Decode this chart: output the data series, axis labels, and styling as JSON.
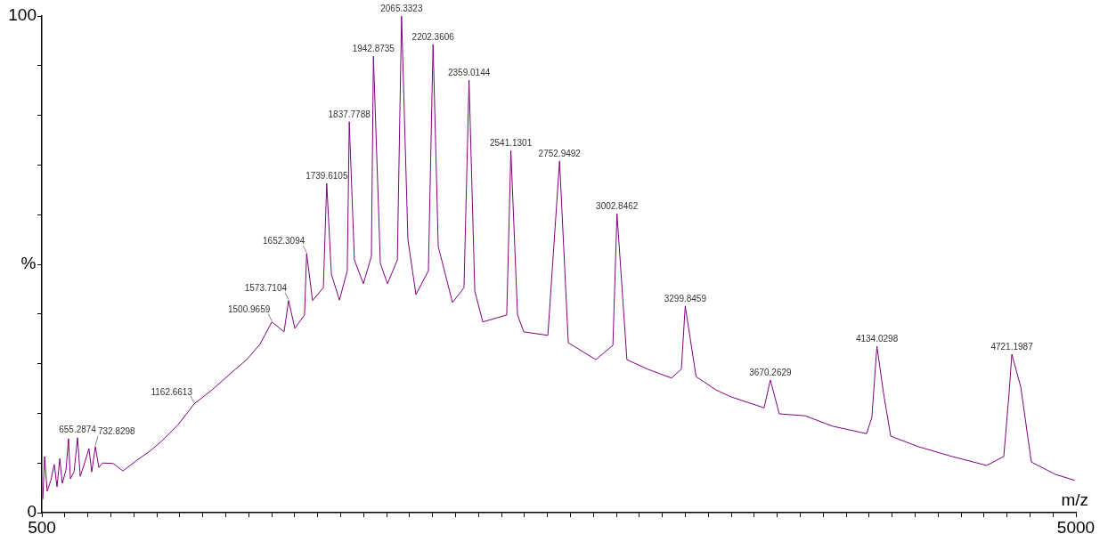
{
  "chart_data": {
    "type": "line",
    "xlabel": "m/z",
    "ylabel": "%",
    "color": "#800080",
    "marker": "none",
    "x": [
      504,
      512,
      523,
      539,
      554,
      566,
      578,
      589,
      605,
      616,
      624,
      640,
      655.3,
      667,
      686,
      705,
      717,
      732.8,
      748,
      764,
      810,
      853,
      915,
      973,
      1019,
      1093,
      1162.7,
      1240,
      1333,
      1391,
      1449,
      1501,
      1554,
      1573.7,
      1601,
      1643,
      1652.3,
      1678,
      1725,
      1739.6,
      1760,
      1795,
      1829,
      1837.8,
      1860,
      1899,
      1934,
      1942.9,
      1973,
      2004,
      2047,
      2065.3,
      2093,
      2128,
      2182,
      2202.4,
      2225,
      2287,
      2337,
      2359,
      2384,
      2419,
      2523,
      2541.1,
      2570,
      2597,
      2702,
      2752.9,
      2791,
      2911,
      2985,
      3002.8,
      3046,
      3136,
      3240,
      3283,
      3299.8,
      3347,
      3434,
      3500,
      3643,
      3670.3,
      3709,
      3822,
      3942,
      4089,
      4112,
      4134,
      4163,
      4194,
      4314,
      4461,
      4612,
      4686,
      4709,
      4721.2,
      4760,
      4806,
      4911,
      4995
    ],
    "values": [
      2.7,
      11.3,
      4.3,
      6.5,
      9.7,
      5.2,
      10.9,
      5.9,
      8.6,
      14.9,
      6.8,
      8.2,
      15.1,
      7.3,
      10,
      12.9,
      8.2,
      13.3,
      9.1,
      10,
      9.9,
      8.4,
      10.6,
      12.5,
      14.3,
      17.7,
      21.9,
      24.7,
      28.5,
      30.8,
      33.9,
      38.4,
      36.4,
      42.7,
      37.1,
      39.8,
      52.2,
      42.7,
      45.3,
      66.3,
      48,
      42.8,
      48.7,
      78.7,
      50.9,
      46.1,
      51.6,
      91.9,
      50.2,
      46.1,
      50.9,
      100,
      55,
      43.9,
      48.7,
      94.3,
      53.6,
      42.3,
      45.3,
      87.1,
      44.6,
      38.4,
      39.8,
      72.9,
      39.8,
      36.4,
      35.7,
      70.8,
      34.2,
      30.8,
      33.7,
      60.2,
      30.8,
      28.9,
      27.1,
      28.9,
      41.6,
      27.4,
      24.7,
      23.3,
      21.1,
      26.7,
      19.9,
      19.5,
      17.4,
      15.9,
      19.2,
      33.5,
      24,
      15.4,
      13.3,
      11.3,
      9.5,
      11.3,
      24,
      31.9,
      25.3,
      10.2,
      7.7,
      6.5
    ],
    "xlim": [
      500,
      5000
    ],
    "xticks": [
      500,
      {
        "value": 600,
        "label": null
      },
      {
        "value": 700,
        "label": null
      },
      {
        "value": 800,
        "label": null
      },
      {
        "value": 900,
        "label": null
      },
      {
        "value": 1000,
        "label": null
      },
      {
        "value": 1100,
        "label": null
      },
      {
        "value": 1200,
        "label": null
      },
      {
        "value": 1300,
        "label": null
      },
      {
        "value": 1400,
        "label": null
      },
      {
        "value": 1500,
        "label": null
      },
      {
        "value": 1600,
        "label": null
      },
      {
        "value": 1700,
        "label": null
      },
      {
        "value": 1800,
        "label": null
      },
      {
        "value": 1900,
        "label": null
      },
      {
        "value": 2000,
        "label": null
      },
      {
        "value": 2100,
        "label": null
      },
      {
        "value": 2200,
        "label": null
      },
      {
        "value": 2300,
        "label": null
      },
      {
        "value": 2400,
        "label": null
      },
      {
        "value": 2500,
        "label": null
      },
      {
        "value": 2600,
        "label": null
      },
      {
        "value": 2700,
        "label": null
      },
      {
        "value": 2800,
        "label": null
      },
      {
        "value": 2900,
        "label": null
      },
      {
        "value": 3000,
        "label": null
      },
      {
        "value": 3100,
        "label": null
      },
      {
        "value": 3200,
        "label": null
      },
      {
        "value": 3300,
        "label": null
      },
      {
        "value": 3400,
        "label": null
      },
      {
        "value": 3500,
        "label": null
      },
      {
        "value": 3600,
        "label": null
      },
      {
        "value": 3700,
        "label": null
      },
      {
        "value": 3800,
        "label": null
      },
      {
        "value": 3900,
        "label": null
      },
      {
        "value": 4000,
        "label": null
      },
      {
        "value": 4100,
        "label": null
      },
      {
        "value": 4200,
        "label": null
      },
      {
        "value": 4300,
        "label": null
      },
      {
        "value": 4400,
        "label": null
      },
      {
        "value": 4500,
        "label": null
      },
      {
        "value": 4600,
        "label": null
      },
      {
        "value": 4700,
        "label": null
      },
      {
        "value": 4800,
        "label": null
      },
      {
        "value": 4900,
        "label": null
      },
      5000
    ],
    "ylim": [
      0,
      100
    ],
    "yticks": [
      0,
      {
        "value": 10,
        "label": null
      },
      {
        "value": 20,
        "label": null
      },
      {
        "value": 30,
        "label": null
      },
      {
        "value": 40,
        "label": null
      },
      {
        "value": 50,
        "label": null
      },
      {
        "value": 60,
        "label": null
      },
      {
        "value": 70,
        "label": null
      },
      {
        "value": 80,
        "label": null
      },
      {
        "value": 90,
        "label": null
      },
      100
    ],
    "annotations": [
      {
        "text": "655.2874",
        "x": 655.3,
        "y": 15.1
      },
      {
        "text": "732.8298",
        "x": 732.8,
        "y": 13.3
      },
      {
        "text": "1162.6613",
        "x": 1162.7,
        "y": 21.9
      },
      {
        "text": "1500.9659",
        "x": 1501,
        "y": 38.4
      },
      {
        "text": "1573.7104",
        "x": 1573.7,
        "y": 42.7
      },
      {
        "text": "1652.3094",
        "x": 1652.3,
        "y": 52.2
      },
      {
        "text": "1739.6105",
        "x": 1739.6,
        "y": 66.3
      },
      {
        "text": "1837.7788",
        "x": 1837.8,
        "y": 78.7
      },
      {
        "text": "1942.8735",
        "x": 1942.9,
        "y": 91.9
      },
      {
        "text": "2065.3323",
        "x": 2065.3,
        "y": 100
      },
      {
        "text": "2202.3606",
        "x": 2202.4,
        "y": 94.3
      },
      {
        "text": "2359.0144",
        "x": 2359,
        "y": 87.1
      },
      {
        "text": "2541.1301",
        "x": 2541.1,
        "y": 72.9
      },
      {
        "text": "2752.9492",
        "x": 2752.9,
        "y": 70.8
      },
      {
        "text": "3002.8462",
        "x": 3002.8,
        "y": 60.2
      },
      {
        "text": "3299.8459",
        "x": 3299.8,
        "y": 41.6
      },
      {
        "text": "3670.2629",
        "x": 3670.3,
        "y": 26.7
      },
      {
        "text": "4134.0298",
        "x": 4134,
        "y": 33.5
      },
      {
        "text": "4721.1987",
        "x": 4721.2,
        "y": 31.9
      }
    ]
  }
}
